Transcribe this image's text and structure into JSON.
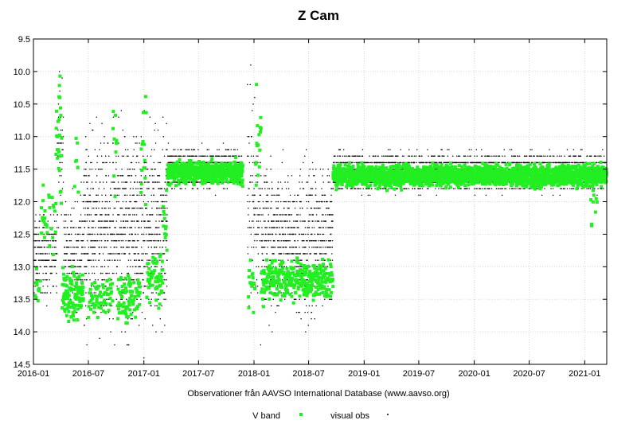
{
  "chart_data": {
    "type": "scatter",
    "title": "Z Cam",
    "xlabel": "Observationer från AAVSO International Database (www.aavso.org)",
    "ylabel": "",
    "x_axis": {
      "type": "date",
      "range": [
        "2016-01-01",
        "2021-03-15"
      ],
      "ticks": [
        "2016-01",
        "2016-07",
        "2017-01",
        "2017-07",
        "2018-01",
        "2018-07",
        "2019-01",
        "2019-07",
        "2020-01",
        "2020-07",
        "2021-01"
      ]
    },
    "y_axis": {
      "range": [
        9.5,
        14.5
      ],
      "inverted": true,
      "ticks": [
        "9.5",
        "10.0",
        "10.5",
        "11.0",
        "11.5",
        "12.0",
        "12.5",
        "13.0",
        "13.5",
        "14.0",
        "14.5"
      ]
    },
    "grid": true,
    "legend_position": "bottom",
    "colors": {
      "v_band": "#22ee22",
      "visual": "#000000",
      "grid": "#d9d9d9"
    },
    "series": [
      {
        "name": "V band",
        "marker": "square",
        "color": "#22ee22",
        "segments": [
          {
            "from": "2016-01-01",
            "to": "2016-01-25",
            "median": 13.3,
            "spread": 0.35,
            "density": 0.5
          },
          {
            "from": "2016-01-25",
            "to": "2016-03-15",
            "median": 12.3,
            "spread": 0.45,
            "density": 0.6
          },
          {
            "from": "2016-03-15",
            "to": "2016-04-05",
            "median": 11.0,
            "spread": 1.0,
            "density": 1.5
          },
          {
            "from": "2016-04-05",
            "to": "2016-06-15",
            "median": 13.4,
            "spread": 0.35,
            "density": 1.8
          },
          {
            "from": "2016-05-15",
            "to": "2016-05-30",
            "median": 11.2,
            "spread": 0.9,
            "density": 0.8
          },
          {
            "from": "2016-07-01",
            "to": "2016-09-20",
            "median": 13.5,
            "spread": 0.3,
            "density": 0.8
          },
          {
            "from": "2016-09-20",
            "to": "2016-10-05",
            "median": 11.0,
            "spread": 0.8,
            "density": 0.8
          },
          {
            "from": "2016-10-05",
            "to": "2016-12-20",
            "median": 13.5,
            "spread": 0.35,
            "density": 1.2
          },
          {
            "from": "2016-12-20",
            "to": "2017-01-10",
            "median": 11.2,
            "spread": 0.9,
            "density": 0.8
          },
          {
            "from": "2017-01-10",
            "to": "2017-03-05",
            "median": 13.2,
            "spread": 0.4,
            "density": 1.2
          },
          {
            "from": "2017-03-05",
            "to": "2017-03-20",
            "median": 12.3,
            "spread": 0.7,
            "density": 0.8
          },
          {
            "from": "2017-03-20",
            "to": "2017-11-25",
            "median": 11.55,
            "spread": 0.15,
            "density": 3.0
          },
          {
            "from": "2017-12-10",
            "to": "2018-01-05",
            "median": 13.3,
            "spread": 0.35,
            "density": 1.0
          },
          {
            "from": "2018-01-05",
            "to": "2018-01-25",
            "median": 11.2,
            "spread": 0.9,
            "density": 1.0
          },
          {
            "from": "2018-01-25",
            "to": "2018-09-20",
            "median": 13.2,
            "spread": 0.3,
            "density": 1.5
          },
          {
            "from": "2018-09-20",
            "to": "2021-03-15",
            "median": 11.6,
            "spread": 0.15,
            "density": 3.0
          },
          {
            "from": "2021-01-20",
            "to": "2021-02-15",
            "median": 12.1,
            "spread": 0.3,
            "density": 0.5
          }
        ]
      },
      {
        "name": "visual obs",
        "marker": "dot",
        "color": "#000000",
        "segments": [
          {
            "from": "2016-01-01",
            "to": "2016-03-20",
            "median": 12.8,
            "spread": 0.6,
            "density": 3.0
          },
          {
            "from": "2016-03-20",
            "to": "2016-04-10",
            "median": 11.0,
            "spread": 1.0,
            "density": 2.0
          },
          {
            "from": "2016-04-10",
            "to": "2016-06-15",
            "median": 12.8,
            "spread": 0.8,
            "density": 3.0
          },
          {
            "from": "2016-06-15",
            "to": "2017-03-20",
            "median": 12.4,
            "spread": 1.4,
            "density": 4.0
          },
          {
            "from": "2017-03-20",
            "to": "2017-11-25",
            "median": 11.5,
            "spread": 0.25,
            "density": 4.0
          },
          {
            "from": "2017-12-10",
            "to": "2018-01-25",
            "median": 12.0,
            "spread": 1.5,
            "density": 2.5
          },
          {
            "from": "2018-01-25",
            "to": "2018-09-20",
            "median": 12.6,
            "spread": 1.0,
            "density": 3.5
          },
          {
            "from": "2018-09-20",
            "to": "2021-03-15",
            "median": 11.55,
            "spread": 0.25,
            "density": 4.0
          }
        ]
      }
    ]
  }
}
